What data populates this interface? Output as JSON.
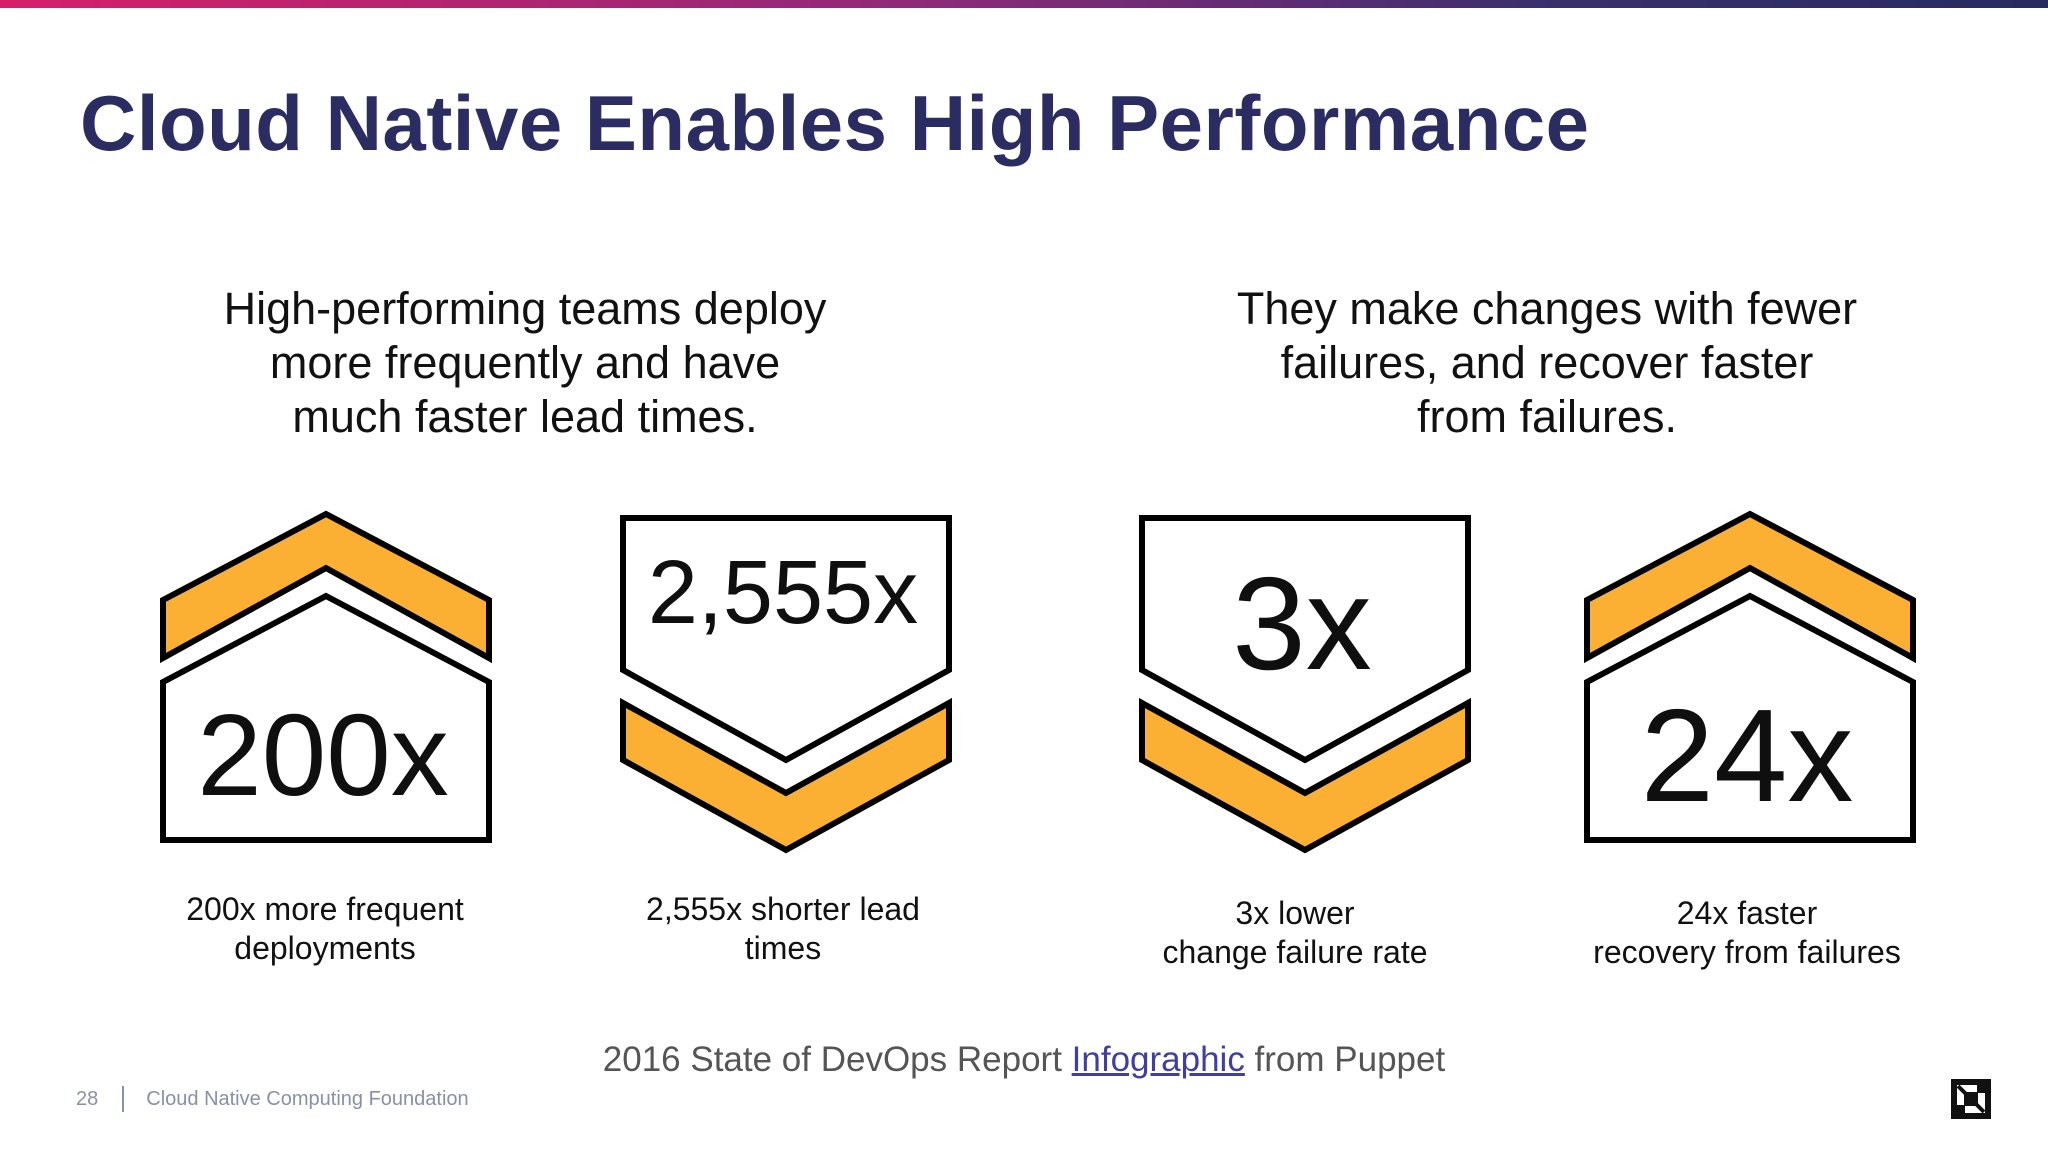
{
  "slide": {
    "title": "Cloud Native Enables High Performance",
    "heading_left": "High-performing teams deploy\nmore frequently and have\nmuch faster lead times.",
    "heading_right": "They make changes with fewer\nfailures, and recover faster\nfrom failures."
  },
  "stats": [
    {
      "value": "200x",
      "caption_line1": "200x more frequent",
      "caption_line2": "deployments"
    },
    {
      "value": "2,555x",
      "caption_line1": "2,555x shorter lead",
      "caption_line2": "times"
    },
    {
      "value": "3x",
      "caption_line1": "3x lower",
      "caption_line2": "change failure rate"
    },
    {
      "value": "24x",
      "caption_line1": "24x faster",
      "caption_line2": "recovery from failures"
    }
  ],
  "source": {
    "prefix": "2016 State of DevOps Report ",
    "link_text": "Infographic",
    "suffix": " from Puppet"
  },
  "footer": {
    "page_number": "28",
    "org": "Cloud Native Computing Foundation"
  },
  "colors": {
    "accent_gold": "#FBB034",
    "title_navy": "#2B2D62"
  },
  "icons": {
    "up_badge": "chevron-up-house-icon",
    "down_badge": "chevron-down-shield-icon",
    "logo": "cncf-logo-icon"
  }
}
